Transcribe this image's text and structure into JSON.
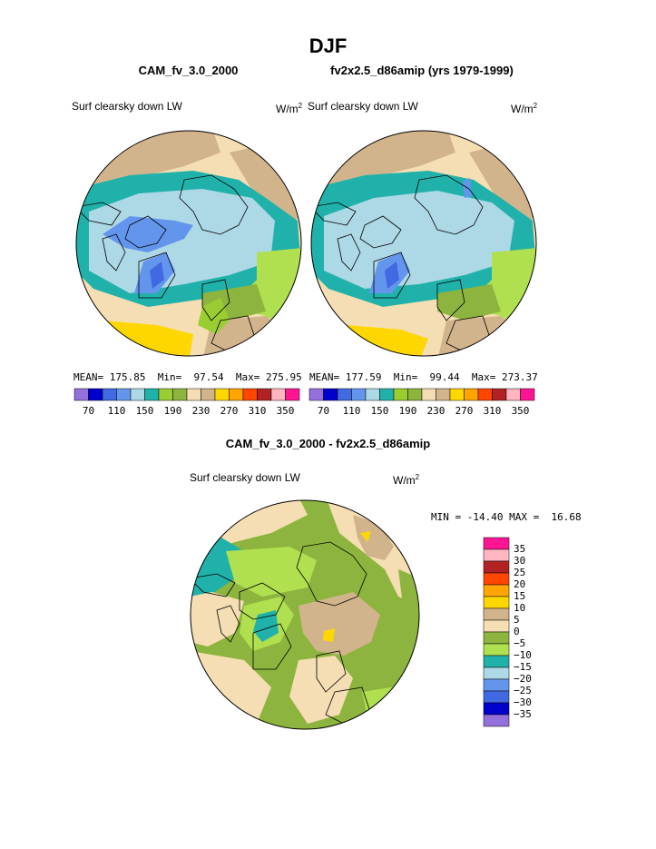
{
  "page": {
    "season": "DJF",
    "diff_title": "CAM_fv_3.0_2000 - fv2x2.5_d86amip"
  },
  "panels": [
    {
      "case": "CAM_fv_3.0_2000",
      "field": "Surf clearsky down LW",
      "units_base": "W/m",
      "units_exp": "2",
      "mean_label": "MEAN=",
      "mean": "175.85",
      "min_label": "Min=",
      "min": "97.54",
      "max_label": "Max=",
      "max": "275.95"
    },
    {
      "case": "fv2x2.5_d86amip (yrs 1979-1999)",
      "field": "Surf clearsky down LW",
      "units_base": "W/m",
      "units_exp": "2",
      "mean_label": "MEAN=",
      "mean": "177.59",
      "min_label": "Min=",
      "min": "99.44",
      "max_label": "Max=",
      "max": "273.37"
    }
  ],
  "diff_panel": {
    "field": "Surf clearsky down LW",
    "units_base": "W/m",
    "units_exp": "2",
    "min_label": "MIN =",
    "min": "-14.40",
    "max_label": "MAX =",
    "max": "16.68"
  },
  "colorbar_main": {
    "colors": [
      "#9370db",
      "#0000cd",
      "#4169e1",
      "#6495ed",
      "#add8e6",
      "#20b2aa",
      "#9acd32",
      "#8db43e",
      "#f5deb3",
      "#d2b48c",
      "#ffd700",
      "#ffa500",
      "#ff4500",
      "#b22222",
      "#ffb6c1",
      "#ff1493"
    ],
    "tick_labels": [
      "70",
      "110",
      "150",
      "190",
      "230",
      "270",
      "310",
      "350"
    ]
  },
  "colorbar_diff": {
    "colors": [
      "#ff1493",
      "#ffb6c1",
      "#b22222",
      "#ff4500",
      "#ffa500",
      "#ffd700",
      "#d2b48c",
      "#f5deb3",
      "#8db43e",
      "#b0e050",
      "#20b2aa",
      "#add8e6",
      "#6495ed",
      "#4169e1",
      "#0000cd",
      "#9370db"
    ],
    "tick_labels": [
      "35",
      "30",
      "25",
      "20",
      "15",
      "10",
      "5",
      "0",
      "−5",
      "−10",
      "−15",
      "−20",
      "−25",
      "−30",
      "−35"
    ]
  },
  "map_colors": {
    "tan": "#d2b48c",
    "wheat": "#f5deb3",
    "teal": "#20b2aa",
    "lightblue": "#add8e6",
    "cornflower": "#6495ed",
    "royal": "#4169e1",
    "green": "#8db43e",
    "lightgreen": "#b0e050",
    "yellow": "#ffd700",
    "orange": "#ffa500"
  }
}
